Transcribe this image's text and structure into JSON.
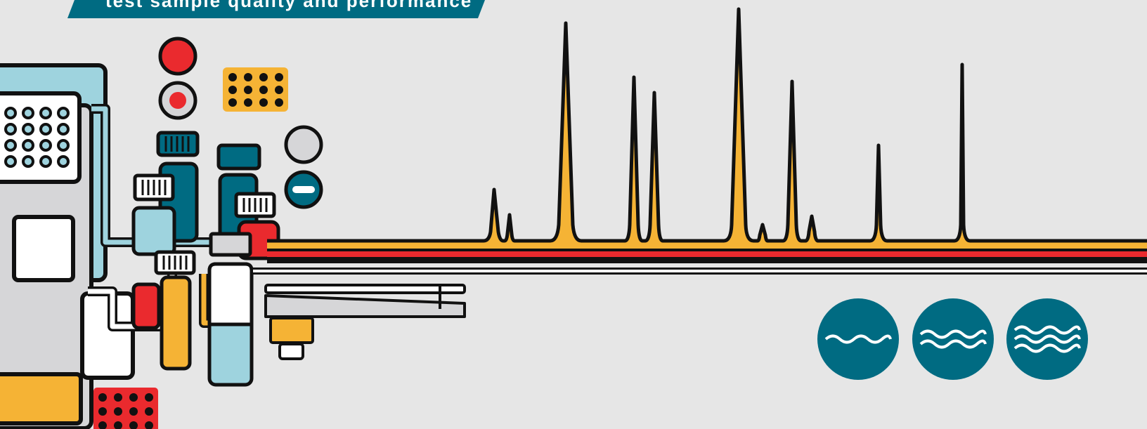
{
  "banner": {
    "text": "test sample quality and performance",
    "color": "#006b82"
  },
  "colors": {
    "background": "#e6e6e6",
    "teal": "#006b82",
    "light_blue": "#9ed3de",
    "yellow": "#f5b335",
    "red": "#ea2a2e",
    "gray": "#d6d6d8",
    "white": "#ffffff",
    "outline": "#111111"
  },
  "indicators": {
    "lights": [
      "red-light",
      "record-button",
      "gray-light",
      "minus-button"
    ],
    "mobile_phase_icons": [
      "single-wave-icon",
      "double-wave-icon",
      "triple-wave-icon"
    ]
  }
}
